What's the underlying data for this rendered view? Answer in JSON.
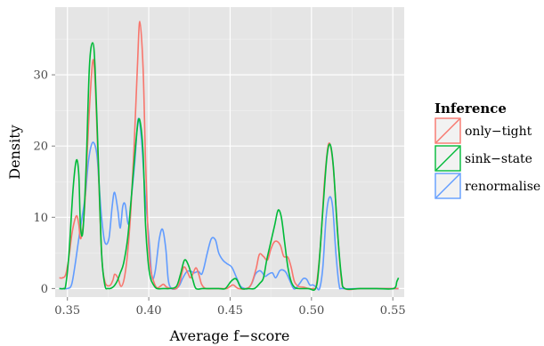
{
  "chart_data": {
    "type": "line",
    "xlabel": "Average f−score",
    "ylabel": "Density",
    "xlim": [
      0.3425,
      0.557
    ],
    "ylim": [
      -1.2,
      39.5
    ],
    "x_ticks": [
      0.35,
      0.4,
      0.45,
      0.5,
      0.55
    ],
    "x_tick_labels": [
      "0.35",
      "0.40",
      "0.45",
      "0.50",
      "0.55"
    ],
    "y_ticks": [
      0,
      10,
      20,
      30
    ],
    "y_tick_labels": [
      "0",
      "10",
      "20",
      "30"
    ],
    "grid": true,
    "legend": {
      "title": "Inference",
      "position": "right"
    },
    "series": [
      {
        "name": "only−tight",
        "color": "#F8766D",
        "points": [
          [
            0.345,
            1.5
          ],
          [
            0.347,
            1.5
          ],
          [
            0.349,
            2
          ],
          [
            0.351,
            4.5
          ],
          [
            0.353,
            8
          ],
          [
            0.3555,
            10.2
          ],
          [
            0.357,
            9
          ],
          [
            0.358,
            7
          ],
          [
            0.3595,
            8.5
          ],
          [
            0.361,
            13
          ],
          [
            0.363,
            23
          ],
          [
            0.3655,
            31.8
          ],
          [
            0.367,
            29
          ],
          [
            0.369,
            17
          ],
          [
            0.371,
            5
          ],
          [
            0.373,
            1
          ],
          [
            0.376,
            0.4
          ],
          [
            0.378,
            1.2
          ],
          [
            0.379,
            2
          ],
          [
            0.381,
            1.5
          ],
          [
            0.383,
            0.3
          ],
          [
            0.385,
            1.5
          ],
          [
            0.387,
            5
          ],
          [
            0.389,
            11
          ],
          [
            0.391,
            20
          ],
          [
            0.393,
            31
          ],
          [
            0.3945,
            37.5
          ],
          [
            0.3965,
            31
          ],
          [
            0.398,
            18
          ],
          [
            0.3995,
            8
          ],
          [
            0.401,
            3
          ],
          [
            0.403,
            1
          ],
          [
            0.405,
            0.1
          ],
          [
            0.407,
            0.3
          ],
          [
            0.409,
            0.6
          ],
          [
            0.411,
            0.2
          ],
          [
            0.414,
            0
          ],
          [
            0.417,
            0
          ],
          [
            0.419,
            0.8
          ],
          [
            0.4215,
            3
          ],
          [
            0.424,
            2.2
          ],
          [
            0.4255,
            1.5
          ],
          [
            0.427,
            2
          ],
          [
            0.4285,
            2.8
          ],
          [
            0.4295,
            2.8
          ],
          [
            0.431,
            1.8
          ],
          [
            0.4325,
            0.6
          ],
          [
            0.435,
            0
          ],
          [
            0.44,
            0
          ],
          [
            0.445,
            0
          ],
          [
            0.448,
            0
          ],
          [
            0.45,
            0.3
          ],
          [
            0.452,
            0.5
          ],
          [
            0.455,
            0
          ],
          [
            0.46,
            0
          ],
          [
            0.463,
            0.6
          ],
          [
            0.466,
            2.8
          ],
          [
            0.468,
            4.8
          ],
          [
            0.4705,
            4.5
          ],
          [
            0.473,
            4
          ],
          [
            0.475,
            5.5
          ],
          [
            0.477,
            6.5
          ],
          [
            0.479,
            6.6
          ],
          [
            0.481,
            6
          ],
          [
            0.483,
            4.5
          ],
          [
            0.4855,
            4.4
          ],
          [
            0.4875,
            3
          ],
          [
            0.4895,
            1
          ],
          [
            0.492,
            0.3
          ],
          [
            0.495,
            0.2
          ],
          [
            0.498,
            0
          ],
          [
            0.501,
            0
          ],
          [
            0.503,
            0.5
          ],
          [
            0.5055,
            6
          ],
          [
            0.508,
            15
          ],
          [
            0.5105,
            20.3
          ],
          [
            0.513,
            18
          ],
          [
            0.5155,
            10
          ],
          [
            0.518,
            2
          ],
          [
            0.5205,
            0
          ],
          [
            0.53,
            0
          ],
          [
            0.54,
            0
          ],
          [
            0.55,
            0
          ],
          [
            0.5535,
            0
          ]
        ]
      },
      {
        "name": "sink−state",
        "color": "#00BA38",
        "points": [
          [
            0.345,
            0
          ],
          [
            0.3475,
            0
          ],
          [
            0.349,
            0.5
          ],
          [
            0.351,
            5
          ],
          [
            0.3535,
            14
          ],
          [
            0.3555,
            18
          ],
          [
            0.357,
            16
          ],
          [
            0.358,
            9
          ],
          [
            0.3595,
            8
          ],
          [
            0.3615,
            17
          ],
          [
            0.3635,
            31
          ],
          [
            0.3655,
            34.5
          ],
          [
            0.367,
            31
          ],
          [
            0.369,
            18
          ],
          [
            0.371,
            5
          ],
          [
            0.373,
            0.5
          ],
          [
            0.375,
            0
          ],
          [
            0.378,
            0.2
          ],
          [
            0.3805,
            1
          ],
          [
            0.3825,
            2.2
          ],
          [
            0.3845,
            3.5
          ],
          [
            0.387,
            7
          ],
          [
            0.389,
            12
          ],
          [
            0.3915,
            19
          ],
          [
            0.3935,
            23.5
          ],
          [
            0.395,
            23
          ],
          [
            0.3965,
            19
          ],
          [
            0.398,
            9
          ],
          [
            0.3995,
            4
          ],
          [
            0.401,
            1.5
          ],
          [
            0.403,
            0.5
          ],
          [
            0.405,
            0
          ],
          [
            0.409,
            0
          ],
          [
            0.413,
            0
          ],
          [
            0.417,
            0.3
          ],
          [
            0.4195,
            2
          ],
          [
            0.422,
            4
          ],
          [
            0.4245,
            3.2
          ],
          [
            0.427,
            1.3
          ],
          [
            0.429,
            0
          ],
          [
            0.433,
            0
          ],
          [
            0.438,
            0
          ],
          [
            0.443,
            0
          ],
          [
            0.447,
            0
          ],
          [
            0.4505,
            1
          ],
          [
            0.453,
            1.4
          ],
          [
            0.4545,
            1.1
          ],
          [
            0.457,
            0
          ],
          [
            0.461,
            0
          ],
          [
            0.465,
            0
          ],
          [
            0.4685,
            0.8
          ],
          [
            0.4705,
            1.5
          ],
          [
            0.4725,
            4
          ],
          [
            0.475,
            6.5
          ],
          [
            0.4775,
            9
          ],
          [
            0.4795,
            11
          ],
          [
            0.4815,
            10
          ],
          [
            0.4835,
            6.5
          ],
          [
            0.4855,
            3
          ],
          [
            0.4875,
            1
          ],
          [
            0.4895,
            0.2
          ],
          [
            0.492,
            0
          ],
          [
            0.498,
            0
          ],
          [
            0.5025,
            0
          ],
          [
            0.5045,
            3
          ],
          [
            0.507,
            11
          ],
          [
            0.5095,
            18.5
          ],
          [
            0.5115,
            20.2
          ],
          [
            0.5135,
            17
          ],
          [
            0.516,
            8
          ],
          [
            0.5185,
            1.5
          ],
          [
            0.5205,
            0
          ],
          [
            0.53,
            0
          ],
          [
            0.54,
            0
          ],
          [
            0.5505,
            0
          ],
          [
            0.5525,
            1
          ],
          [
            0.5535,
            1.5
          ]
        ]
      },
      {
        "name": "renormalise",
        "color": "#619CFF",
        "points": [
          [
            0.345,
            0
          ],
          [
            0.35,
            0
          ],
          [
            0.3525,
            0.5
          ],
          [
            0.3545,
            3
          ],
          [
            0.357,
            7
          ],
          [
            0.359,
            10
          ],
          [
            0.361,
            13
          ],
          [
            0.363,
            18
          ],
          [
            0.3655,
            20.5
          ],
          [
            0.368,
            19
          ],
          [
            0.3695,
            14.5
          ],
          [
            0.371,
            10
          ],
          [
            0.373,
            6.5
          ],
          [
            0.3755,
            7
          ],
          [
            0.3775,
            11.5
          ],
          [
            0.379,
            13.5
          ],
          [
            0.381,
            11
          ],
          [
            0.3825,
            8.5
          ],
          [
            0.384,
            11.5
          ],
          [
            0.3855,
            11.8
          ],
          [
            0.3875,
            9
          ],
          [
            0.389,
            12
          ],
          [
            0.3915,
            18
          ],
          [
            0.3935,
            23.8
          ],
          [
            0.3955,
            21
          ],
          [
            0.3975,
            14
          ],
          [
            0.399,
            10
          ],
          [
            0.4005,
            6
          ],
          [
            0.402,
            1.5
          ],
          [
            0.404,
            2.5
          ],
          [
            0.4065,
            7
          ],
          [
            0.4085,
            8.3
          ],
          [
            0.4105,
            5.5
          ],
          [
            0.412,
            1.2
          ],
          [
            0.414,
            0
          ],
          [
            0.417,
            0
          ],
          [
            0.419,
            0.5
          ],
          [
            0.421,
            1.5
          ],
          [
            0.4235,
            2.4
          ],
          [
            0.426,
            2.4
          ],
          [
            0.428,
            2.2
          ],
          [
            0.4305,
            2.4
          ],
          [
            0.4325,
            2
          ],
          [
            0.434,
            3
          ],
          [
            0.436,
            5
          ],
          [
            0.4385,
            7
          ],
          [
            0.441,
            6.8
          ],
          [
            0.443,
            5
          ],
          [
            0.4455,
            4
          ],
          [
            0.448,
            3.5
          ],
          [
            0.451,
            3
          ],
          [
            0.454,
            1.5
          ],
          [
            0.4565,
            0.3
          ],
          [
            0.459,
            0
          ],
          [
            0.461,
            0
          ],
          [
            0.4635,
            0.8
          ],
          [
            0.4655,
            2
          ],
          [
            0.468,
            2.5
          ],
          [
            0.4695,
            2.3
          ],
          [
            0.4715,
            1.7
          ],
          [
            0.4735,
            2
          ],
          [
            0.476,
            2.2
          ],
          [
            0.478,
            1.5
          ],
          [
            0.4805,
            2.5
          ],
          [
            0.4825,
            2.6
          ],
          [
            0.4845,
            2.2
          ],
          [
            0.4865,
            1.2
          ],
          [
            0.489,
            0
          ],
          [
            0.491,
            0.2
          ],
          [
            0.493,
            0.8
          ],
          [
            0.495,
            1.4
          ],
          [
            0.497,
            1.3
          ],
          [
            0.499,
            0.5
          ],
          [
            0.501,
            0.5
          ],
          [
            0.503,
            0.2
          ],
          [
            0.505,
            0
          ],
          [
            0.507,
            3
          ],
          [
            0.509,
            10
          ],
          [
            0.511,
            12.8
          ],
          [
            0.513,
            11.5
          ],
          [
            0.515,
            5
          ],
          [
            0.517,
            0.5
          ],
          [
            0.519,
            0
          ],
          [
            0.53,
            0
          ],
          [
            0.54,
            0
          ],
          [
            0.5535,
            0
          ]
        ]
      }
    ]
  }
}
